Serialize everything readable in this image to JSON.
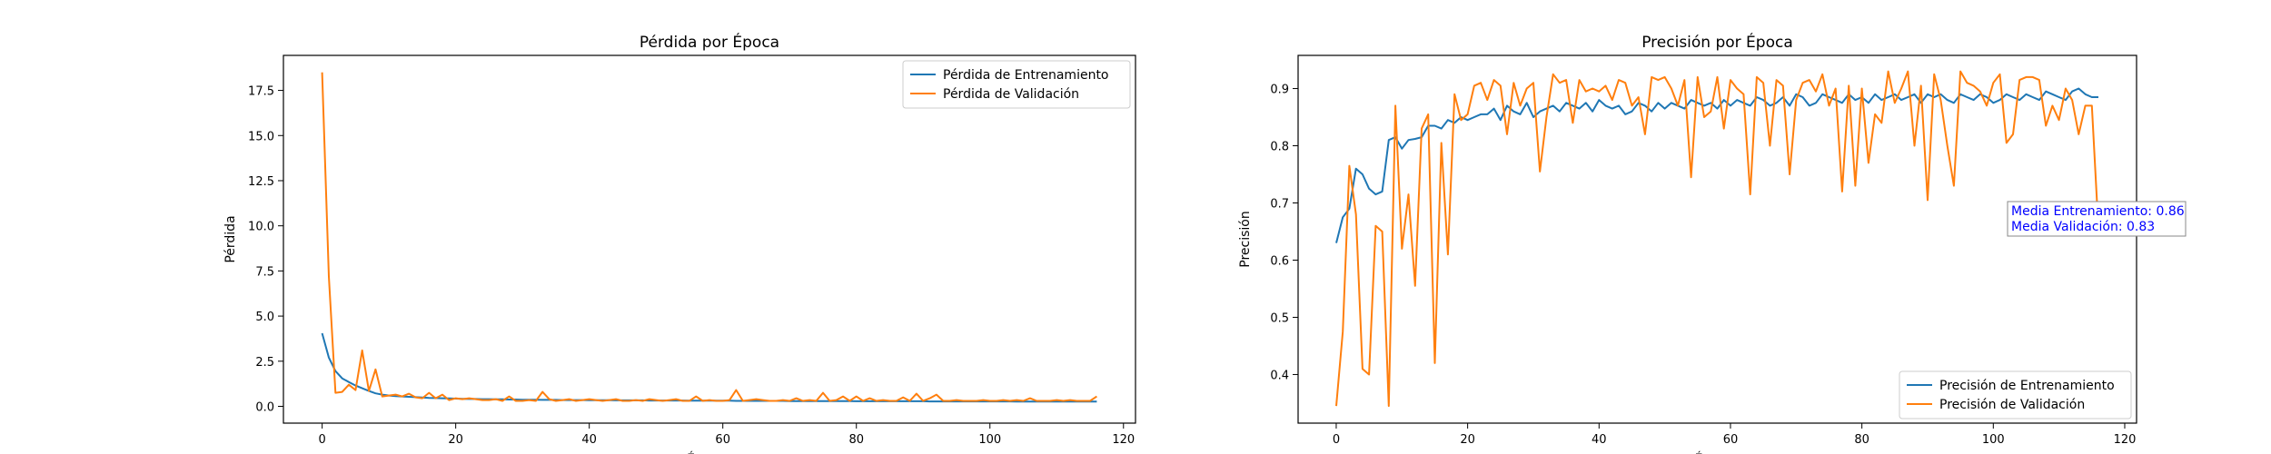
{
  "colors": {
    "train": "#1f77b4",
    "val": "#ff7f0e",
    "annot": "#0000ff",
    "axis": "#000000"
  },
  "chart_data": [
    {
      "type": "line",
      "title": "Pérdida por Época",
      "xlabel": "Épocas",
      "ylabel": "Pérdida",
      "xlim": [
        -5.8,
        121.8
      ],
      "ylim": [
        -0.93,
        19.44
      ],
      "xticks": [
        0,
        20,
        40,
        60,
        80,
        100,
        120
      ],
      "yticks": [
        0.0,
        2.5,
        5.0,
        7.5,
        10.0,
        12.5,
        15.0,
        17.5
      ],
      "ytick_labels": [
        "0.0",
        "2.5",
        "5.0",
        "7.5",
        "10.0",
        "12.5",
        "15.0",
        "17.5"
      ],
      "legend": "top-right",
      "series": [
        {
          "name": "Pérdida de Entrenamiento",
          "color": "#1f77b4",
          "x_start": 0,
          "values": [
            4.05,
            2.7,
            1.95,
            1.55,
            1.35,
            1.15,
            1.0,
            0.85,
            0.72,
            0.65,
            0.6,
            0.57,
            0.55,
            0.53,
            0.51,
            0.49,
            0.47,
            0.46,
            0.45,
            0.44,
            0.43,
            0.42,
            0.41,
            0.41,
            0.4,
            0.4,
            0.39,
            0.39,
            0.38,
            0.38,
            0.37,
            0.37,
            0.37,
            0.36,
            0.36,
            0.36,
            0.35,
            0.35,
            0.35,
            0.35,
            0.34,
            0.34,
            0.34,
            0.34,
            0.33,
            0.33,
            0.33,
            0.33,
            0.33,
            0.32,
            0.32,
            0.32,
            0.32,
            0.32,
            0.32,
            0.31,
            0.31,
            0.31,
            0.31,
            0.31,
            0.31,
            0.31,
            0.3,
            0.3,
            0.3,
            0.3,
            0.3,
            0.3,
            0.3,
            0.3,
            0.29,
            0.29,
            0.29,
            0.29,
            0.29,
            0.29,
            0.29,
            0.29,
            0.29,
            0.29,
            0.28,
            0.28,
            0.28,
            0.28,
            0.28,
            0.28,
            0.28,
            0.28,
            0.28,
            0.28,
            0.28,
            0.27,
            0.27,
            0.27,
            0.27,
            0.27,
            0.27,
            0.27,
            0.27,
            0.27,
            0.27,
            0.27,
            0.27,
            0.27,
            0.26,
            0.26,
            0.26,
            0.26,
            0.26,
            0.26,
            0.26,
            0.26,
            0.26,
            0.26,
            0.26,
            0.26,
            0.26
          ]
        },
        {
          "name": "Pérdida de Validación",
          "color": "#ff7f0e",
          "x_start": 0,
          "values": [
            18.5,
            7.2,
            0.75,
            0.8,
            1.2,
            0.9,
            3.1,
            0.85,
            2.05,
            0.55,
            0.6,
            0.65,
            0.55,
            0.7,
            0.5,
            0.45,
            0.75,
            0.45,
            0.65,
            0.35,
            0.45,
            0.4,
            0.45,
            0.4,
            0.35,
            0.35,
            0.4,
            0.3,
            0.55,
            0.3,
            0.3,
            0.35,
            0.3,
            0.8,
            0.4,
            0.3,
            0.35,
            0.4,
            0.3,
            0.35,
            0.4,
            0.35,
            0.3,
            0.35,
            0.4,
            0.3,
            0.3,
            0.35,
            0.3,
            0.4,
            0.35,
            0.3,
            0.35,
            0.4,
            0.3,
            0.3,
            0.55,
            0.3,
            0.35,
            0.3,
            0.3,
            0.35,
            0.9,
            0.3,
            0.35,
            0.4,
            0.35,
            0.3,
            0.3,
            0.35,
            0.3,
            0.45,
            0.3,
            0.35,
            0.3,
            0.75,
            0.3,
            0.35,
            0.55,
            0.3,
            0.55,
            0.3,
            0.45,
            0.3,
            0.35,
            0.3,
            0.3,
            0.5,
            0.3,
            0.7,
            0.3,
            0.45,
            0.65,
            0.3,
            0.3,
            0.35,
            0.3,
            0.3,
            0.3,
            0.35,
            0.3,
            0.3,
            0.35,
            0.3,
            0.35,
            0.3,
            0.45,
            0.3,
            0.3,
            0.3,
            0.35,
            0.3,
            0.35,
            0.3,
            0.3,
            0.3,
            0.55
          ]
        }
      ]
    },
    {
      "type": "line",
      "title": "Precisión por Época",
      "xlabel": "Épocas",
      "ylabel": "Precisión",
      "xlim": [
        -5.8,
        121.8
      ],
      "ylim": [
        0.315,
        0.958
      ],
      "xticks": [
        0,
        20,
        40,
        60,
        80,
        100,
        120
      ],
      "yticks": [
        0.4,
        0.5,
        0.6,
        0.7,
        0.8,
        0.9
      ],
      "ytick_labels": [
        "0.4",
        "0.5",
        "0.6",
        "0.7",
        "0.8",
        "0.9"
      ],
      "legend": "bottom-right",
      "annotation": [
        "Media Entrenamiento: 0.86",
        "Media Validación: 0.83"
      ],
      "series": [
        {
          "name": "Precisión de Entrenamiento",
          "color": "#1f77b4",
          "x_start": 0,
          "values": [
            0.63,
            0.675,
            0.69,
            0.76,
            0.75,
            0.725,
            0.715,
            0.72,
            0.81,
            0.815,
            0.795,
            0.81,
            0.812,
            0.815,
            0.835,
            0.835,
            0.83,
            0.845,
            0.84,
            0.85,
            0.845,
            0.85,
            0.855,
            0.855,
            0.865,
            0.845,
            0.87,
            0.86,
            0.855,
            0.875,
            0.85,
            0.86,
            0.865,
            0.87,
            0.86,
            0.875,
            0.87,
            0.865,
            0.875,
            0.86,
            0.88,
            0.87,
            0.865,
            0.87,
            0.855,
            0.86,
            0.875,
            0.87,
            0.86,
            0.875,
            0.865,
            0.875,
            0.87,
            0.865,
            0.88,
            0.875,
            0.87,
            0.875,
            0.865,
            0.88,
            0.87,
            0.88,
            0.875,
            0.87,
            0.885,
            0.88,
            0.87,
            0.875,
            0.885,
            0.87,
            0.89,
            0.885,
            0.87,
            0.875,
            0.89,
            0.885,
            0.88,
            0.875,
            0.89,
            0.88,
            0.885,
            0.875,
            0.89,
            0.88,
            0.885,
            0.89,
            0.88,
            0.885,
            0.89,
            0.875,
            0.89,
            0.885,
            0.89,
            0.88,
            0.875,
            0.89,
            0.885,
            0.88,
            0.89,
            0.885,
            0.875,
            0.88,
            0.89,
            0.885,
            0.88,
            0.89,
            0.885,
            0.88,
            0.895,
            0.89,
            0.885,
            0.88,
            0.895,
            0.9,
            0.89,
            0.885,
            0.885
          ]
        },
        {
          "name": "Precisión de Validación",
          "color": "#ff7f0e",
          "x_start": 0,
          "values": [
            0.345,
            0.475,
            0.765,
            0.68,
            0.41,
            0.4,
            0.66,
            0.65,
            0.345,
            0.87,
            0.62,
            0.715,
            0.555,
            0.83,
            0.855,
            0.42,
            0.805,
            0.61,
            0.89,
            0.845,
            0.855,
            0.905,
            0.91,
            0.88,
            0.915,
            0.905,
            0.82,
            0.91,
            0.87,
            0.9,
            0.91,
            0.755,
            0.85,
            0.925,
            0.91,
            0.915,
            0.84,
            0.915,
            0.895,
            0.9,
            0.895,
            0.905,
            0.88,
            0.915,
            0.91,
            0.87,
            0.885,
            0.82,
            0.92,
            0.915,
            0.92,
            0.9,
            0.87,
            0.915,
            0.745,
            0.92,
            0.85,
            0.86,
            0.92,
            0.83,
            0.915,
            0.9,
            0.89,
            0.715,
            0.92,
            0.91,
            0.8,
            0.915,
            0.905,
            0.75,
            0.88,
            0.91,
            0.915,
            0.895,
            0.925,
            0.87,
            0.9,
            0.72,
            0.905,
            0.73,
            0.9,
            0.77,
            0.855,
            0.84,
            0.93,
            0.875,
            0.9,
            0.93,
            0.8,
            0.905,
            0.705,
            0.925,
            0.88,
            0.8,
            0.73,
            0.93,
            0.91,
            0.905,
            0.895,
            0.87,
            0.91,
            0.925,
            0.805,
            0.82,
            0.915,
            0.92,
            0.92,
            0.915,
            0.835,
            0.87,
            0.845,
            0.9,
            0.88,
            0.82,
            0.87,
            0.87,
            0.655
          ]
        }
      ]
    }
  ]
}
